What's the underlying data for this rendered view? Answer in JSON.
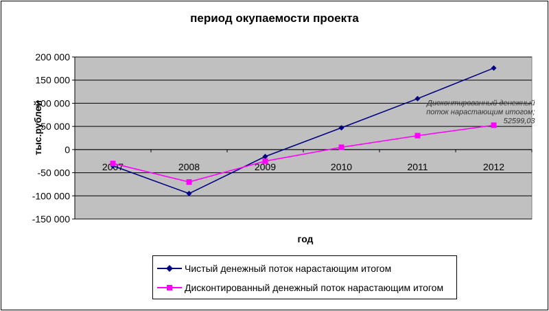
{
  "chart_data": {
    "type": "line",
    "title": "период окупаемости проекта",
    "xlabel": "год",
    "ylabel": "тыс.рублей",
    "categories": [
      "2007",
      "2008",
      "2009",
      "2010",
      "2011",
      "2012"
    ],
    "ylim": [
      -150000,
      200000
    ],
    "y_ticks": [
      200000,
      150000,
      100000,
      50000,
      0,
      -50000,
      -100000,
      -150000
    ],
    "y_tick_labels": [
      "200 000",
      "150 000",
      "100 000",
      "50 000",
      "0",
      "-50 000",
      "-100 000",
      "-150 000"
    ],
    "grid": true,
    "plot_background": "#c0c0c0",
    "legend_position": "bottom",
    "series": [
      {
        "name": "Чистый денежный поток нарастающим итогом",
        "color": "#000080",
        "marker": "diamond",
        "values": [
          -35000,
          -95000,
          -15000,
          47000,
          110000,
          176000
        ]
      },
      {
        "name": "Дисконтированный денежный поток нарастающим итогом",
        "color": "#ff00ff",
        "marker": "square",
        "values": [
          -30000,
          -70000,
          -25000,
          5000,
          30000,
          52599.03
        ]
      }
    ],
    "annotations": [
      {
        "series": 1,
        "index": 5,
        "lines": [
          "Дисконтированный денежный",
          "поток нарастающим итогом;",
          "52599,03"
        ]
      }
    ]
  }
}
